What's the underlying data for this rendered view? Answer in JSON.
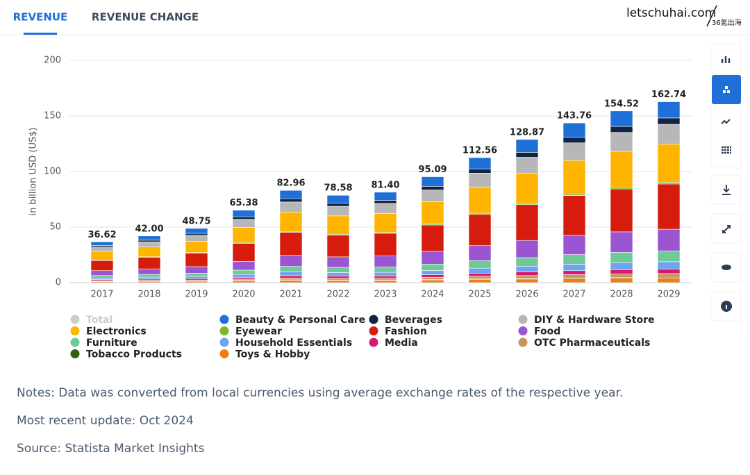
{
  "tabs": [
    "REVENUE",
    "REVENUE CHANGE"
  ],
  "watermark": [
    "letschuhai.com",
    "36氪出海"
  ],
  "notes": [
    "Notes: Data was converted from local currencies using average exchange rates of the respective year.",
    "Most recent update: Oct 2024",
    "Source: Statista Market Insights"
  ],
  "chart_data": {
    "type": "stacked_bar",
    "ylabel": "in billion USD (US$)",
    "categories": [
      "2017",
      "2018",
      "2019",
      "2020",
      "2021",
      "2022",
      "2023",
      "2024",
      "2025",
      "2026",
      "2027",
      "2028",
      "2029"
    ],
    "ylim": [
      0,
      200
    ],
    "yticks": [
      0,
      50,
      100,
      150,
      200
    ],
    "grid": true,
    "series": [
      {
        "name": "Total",
        "color": "#cccccc",
        "hidden": true,
        "values": [
          36.62,
          42.0,
          48.75,
          65.38,
          82.96,
          78.58,
          81.4,
          95.09,
          112.56,
          128.87,
          143.76,
          154.52,
          162.74
        ],
        "value_labels": [
          "36.62",
          "42.00",
          "48.75",
          "65.38",
          "82.96",
          "78.58",
          "81.40",
          "95.09",
          "112.56",
          "128.87",
          "143.76",
          "154.52",
          "162.74"
        ]
      },
      {
        "name": "Beauty & Personal Care",
        "color": "#1f6fd8",
        "values": [
          3.3,
          3.8,
          4.4,
          5.9,
          7.5,
          7.1,
          7.3,
          8.6,
          10.1,
          11.6,
          12.9,
          13.9,
          14.6
        ]
      },
      {
        "name": "Beverages",
        "color": "#0f2342",
        "values": [
          1.3,
          1.5,
          1.7,
          2.3,
          2.9,
          2.8,
          2.8,
          3.3,
          3.9,
          4.5,
          5.0,
          5.4,
          5.7
        ]
      },
      {
        "name": "DIY & Hardware Store",
        "color": "#b7b7b7",
        "values": [
          4.0,
          4.6,
          5.4,
          7.2,
          9.1,
          8.6,
          9.0,
          10.5,
          12.4,
          14.2,
          15.8,
          17.0,
          17.9
        ]
      },
      {
        "name": "Electronics",
        "color": "#ffb400",
        "values": [
          7.7,
          8.8,
          10.2,
          13.7,
          17.4,
          16.5,
          17.1,
          20.0,
          23.6,
          27.1,
          30.2,
          32.4,
          34.2
        ]
      },
      {
        "name": "Eyewear",
        "color": "#7ab62c",
        "values": [
          0.4,
          0.4,
          0.5,
          0.7,
          0.8,
          0.8,
          0.8,
          1.0,
          1.1,
          1.3,
          1.4,
          1.5,
          1.6
        ]
      },
      {
        "name": "Fashion",
        "color": "#d61c0c",
        "values": [
          9.2,
          10.5,
          12.2,
          16.3,
          20.7,
          19.6,
          20.4,
          23.8,
          28.1,
          32.2,
          35.9,
          38.6,
          40.7
        ]
      },
      {
        "name": "Food",
        "color": "#9b55d1",
        "values": [
          4.4,
          5.0,
          5.9,
          7.8,
          10.0,
          9.4,
          9.8,
          11.4,
          13.5,
          15.5,
          17.3,
          18.5,
          19.5
        ]
      },
      {
        "name": "Furniture",
        "color": "#6fcb96",
        "values": [
          2.2,
          2.5,
          2.9,
          3.9,
          5.0,
          4.7,
          4.9,
          5.7,
          6.8,
          7.7,
          8.6,
          9.3,
          9.8
        ]
      },
      {
        "name": "Household Essentials",
        "color": "#6ea4ef",
        "values": [
          1.5,
          1.7,
          2.0,
          2.6,
          3.3,
          3.1,
          3.3,
          3.8,
          4.5,
          5.2,
          5.8,
          6.2,
          6.5
        ]
      },
      {
        "name": "Media",
        "color": "#d9176e",
        "values": [
          0.9,
          1.1,
          1.2,
          1.6,
          2.1,
          2.0,
          2.0,
          2.4,
          2.8,
          3.2,
          3.6,
          3.9,
          4.1
        ]
      },
      {
        "name": "OTC Pharmaceuticals",
        "color": "#c9955f",
        "values": [
          0.7,
          0.8,
          1.0,
          1.3,
          1.7,
          1.6,
          1.6,
          1.9,
          2.3,
          2.6,
          2.9,
          3.1,
          3.3
        ]
      },
      {
        "name": "Tobacco Products",
        "color": "#2f5f12",
        "values": [
          0.2,
          0.2,
          0.2,
          0.3,
          0.4,
          0.4,
          0.4,
          0.5,
          0.6,
          0.6,
          0.7,
          0.8,
          0.8
        ]
      },
      {
        "name": "Toys & Hobby",
        "color": "#f07d12",
        "values": [
          0.9,
          1.1,
          1.2,
          1.6,
          2.1,
          2.0,
          2.0,
          2.4,
          2.8,
          3.2,
          3.6,
          3.9,
          4.1
        ]
      }
    ]
  }
}
